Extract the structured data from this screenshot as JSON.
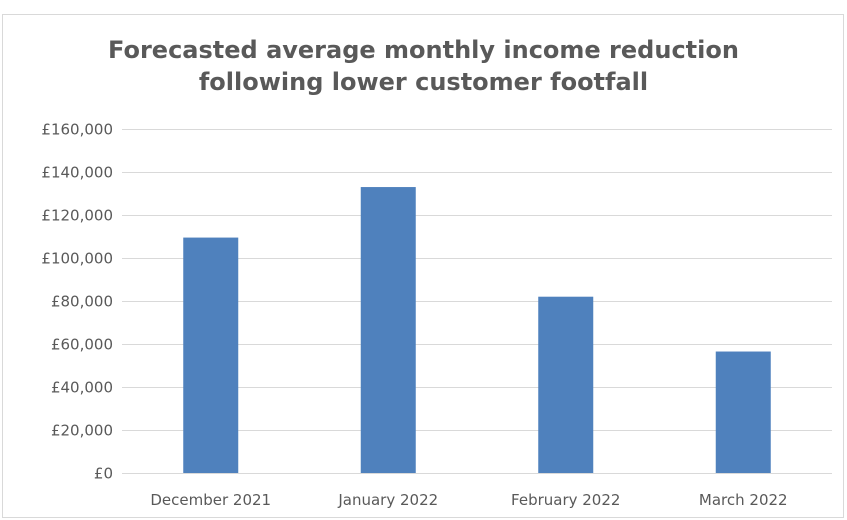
{
  "chart_data": {
    "type": "bar",
    "title_lines": [
      "Forecasted average monthly income reduction",
      "following lower customer footfall"
    ],
    "categories": [
      "December 2021",
      "January 2022",
      "February 2022",
      "March 2022"
    ],
    "values": [
      109500,
      133000,
      82000,
      56500
    ],
    "ylim": [
      0,
      160000
    ],
    "yticks": [
      0,
      20000,
      40000,
      60000,
      80000,
      100000,
      120000,
      140000,
      160000
    ],
    "ytick_labels": [
      "£0",
      "£20,000",
      "£40,000",
      "£60,000",
      "£80,000",
      "£100,000",
      "£120,000",
      "£140,000",
      "£160,000"
    ],
    "xlabel": "",
    "ylabel": "",
    "grid": true,
    "legend": "none",
    "bar_color": "#4f81bd",
    "grid_color": "#d9d9d9",
    "text_color": "#595959"
  }
}
